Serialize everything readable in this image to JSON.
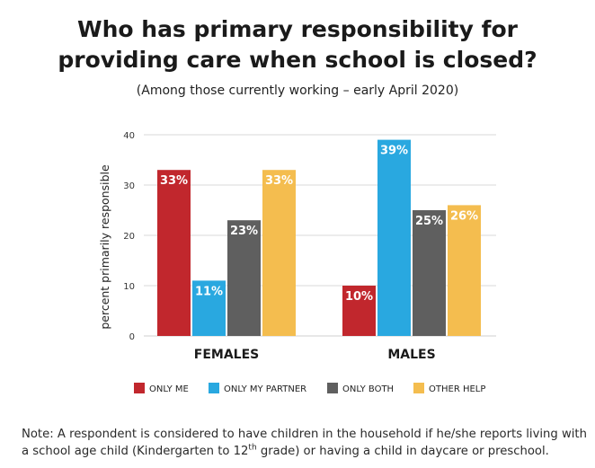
{
  "chart_data": {
    "type": "bar",
    "title_line1": "Who has primary responsibility for",
    "title_line2": "providing care when school is closed?",
    "subtitle": "(Among those currently working – early April 2020)",
    "ylabel": "percent primarily responsible",
    "xlabel": "",
    "ylim": [
      0,
      40
    ],
    "yticks": [
      0,
      10,
      20,
      30,
      40
    ],
    "grid": true,
    "legend_position": "bottom",
    "categories": [
      "FEMALES",
      "MALES"
    ],
    "series": [
      {
        "name": "ONLY ME",
        "color": "#c1272d",
        "values": [
          33,
          10
        ],
        "labels": [
          "33%",
          "10%"
        ]
      },
      {
        "name": "ONLY MY PARTNER",
        "color": "#29a8e0",
        "values": [
          11,
          39
        ],
        "labels": [
          "11%",
          "39%"
        ]
      },
      {
        "name": "ONLY BOTH",
        "color": "#5f5f5f",
        "values": [
          23,
          25
        ],
        "labels": [
          "23%",
          "25%"
        ]
      },
      {
        "name": "OTHER HELP",
        "color": "#f4bd4f",
        "values": [
          33,
          26
        ],
        "labels": [
          "33%",
          "26%"
        ]
      }
    ]
  },
  "note": {
    "part1": "Note: A respondent is considered to have children in the household if he/she reports living with a school age child (Kindergarten to 12",
    "sup": "th",
    "part2": " grade) or having a child in daycare or preschool."
  }
}
